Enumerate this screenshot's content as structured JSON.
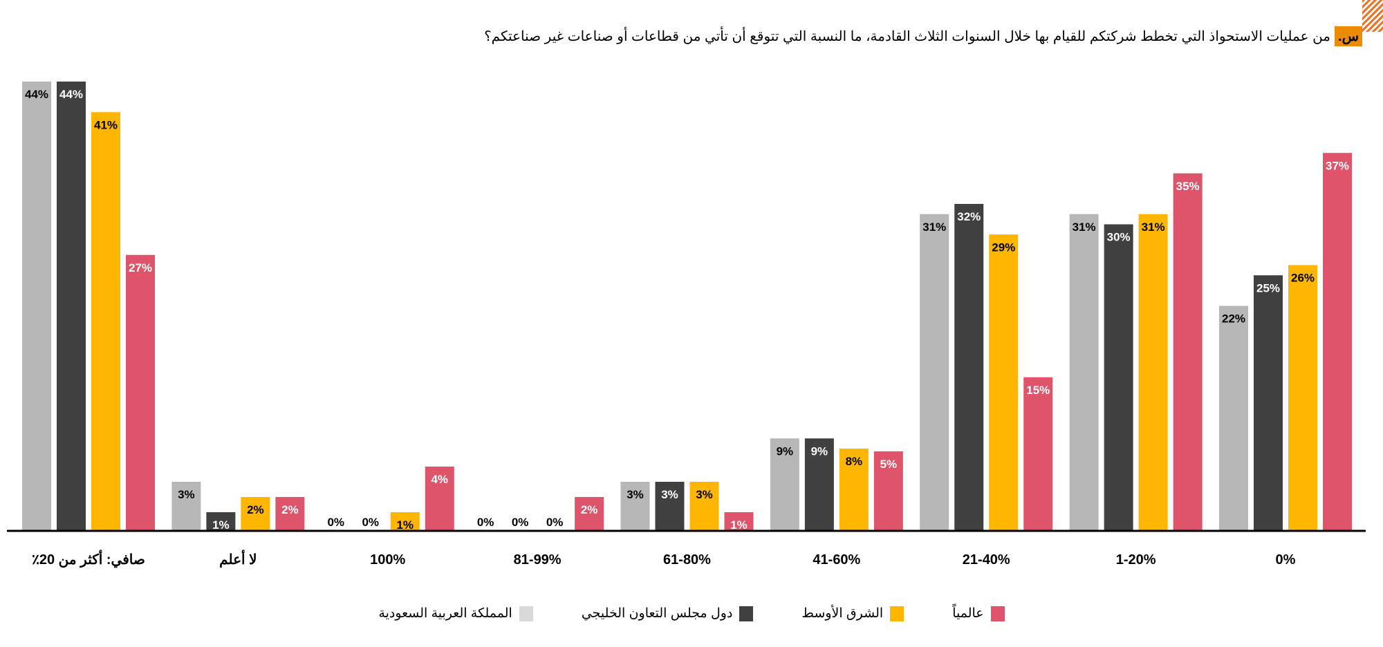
{
  "title": {
    "badge": "س.",
    "text": "من عمليات الاستحواذ التي تخطط شركتكم للقيام بها خلال السنوات الثلاث القادمة، ما النسبة التي تتوقع أن تأتي من قطاعات أو صناعات غير صناعتكم؟"
  },
  "chart_data": {
    "type": "bar",
    "title": "من عمليات الاستحواذ التي تخطط شركتكم للقيام بها خلال السنوات الثلاث القادمة، ما النسبة التي تتوقع أن تأتي من قطاعات أو صناعات غير صناعتكم؟",
    "xlabel": "",
    "ylabel": "",
    "ylim": [
      0,
      44
    ],
    "grid": false,
    "legend_position": "bottom",
    "categories": [
      "صافي: أكثر من 20٪",
      "لا أعلم",
      "100%",
      "81-99%",
      "61-80%",
      "41-60%",
      "21-40%",
      "1-20%",
      "0%"
    ],
    "series": [
      {
        "name": "المملكة العربية السعودية",
        "color": "#b7b7b7",
        "legend_color": "#d9d9d9",
        "label_color": "#000000",
        "values": [
          44,
          3,
          0,
          0,
          3,
          9,
          31,
          31,
          22
        ]
      },
      {
        "name": "دول مجلس التعاون الخليجي",
        "color": "#404040",
        "legend_color": "#404040",
        "label_color": "#ffffff",
        "values": [
          44,
          1,
          0,
          0,
          3,
          9,
          32,
          30,
          25
        ]
      },
      {
        "name": "الشرق الأوسط",
        "color": "#ffb600",
        "legend_color": "#ffb600",
        "label_color": "#000000",
        "values": [
          41,
          2,
          1,
          0,
          3,
          8,
          29,
          31,
          26
        ]
      },
      {
        "name": "عالمياً",
        "color": "#dd546b",
        "legend_color": "#dd546b",
        "label_color": "#ffffff",
        "values": [
          27,
          2,
          4,
          2,
          1,
          5,
          15,
          35,
          37
        ]
      }
    ]
  }
}
